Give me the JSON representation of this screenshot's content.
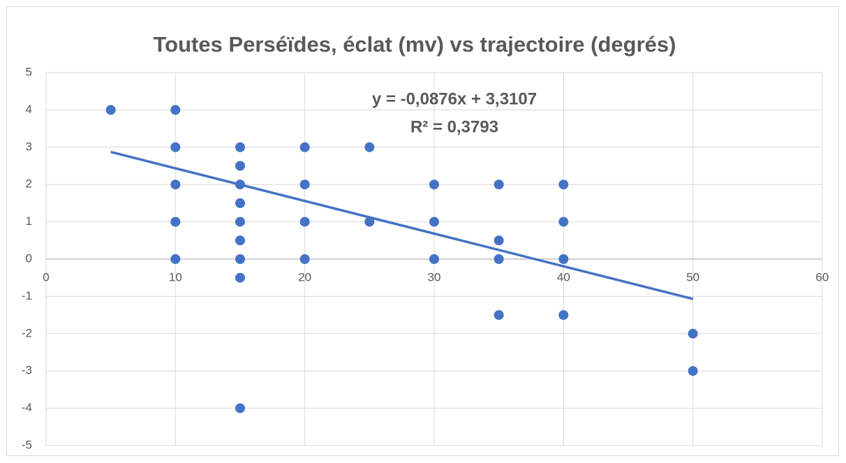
{
  "chart_data": {
    "type": "scatter",
    "title": "Toutes Perséïdes, éclat (mv) vs trajectoire (degrés)",
    "x": [
      5,
      10,
      10,
      10,
      10,
      10,
      15,
      15,
      15,
      15,
      15,
      15,
      15,
      15,
      15,
      20,
      20,
      20,
      20,
      25,
      25,
      30,
      30,
      30,
      35,
      35,
      35,
      35,
      40,
      40,
      40,
      40,
      50,
      50
    ],
    "values": [
      4,
      4,
      3,
      2,
      1,
      0,
      3,
      2.5,
      2,
      1.5,
      1,
      0.5,
      0,
      -0.5,
      -4,
      3,
      2,
      1,
      0,
      3,
      1,
      2,
      1,
      0,
      2,
      0.5,
      0,
      -1.5,
      2,
      1,
      0,
      -1.5,
      -2,
      -3
    ],
    "color": "#4472c4",
    "trendline": {
      "slope": -0.0876,
      "intercept": 3.3107,
      "x": [
        5,
        50
      ],
      "color": "#4472c4",
      "labels": [
        "y = -0,0876x + 3,3107",
        "R² = 0,3793"
      ]
    },
    "xlim": [
      0,
      60
    ],
    "xticks": [
      0,
      10,
      20,
      30,
      40,
      50,
      60
    ],
    "ylim": [
      -5,
      5
    ],
    "yticks": [
      -5,
      -4,
      -3,
      -2,
      -1,
      0,
      1,
      2,
      3,
      4,
      5
    ],
    "grid": true
  }
}
